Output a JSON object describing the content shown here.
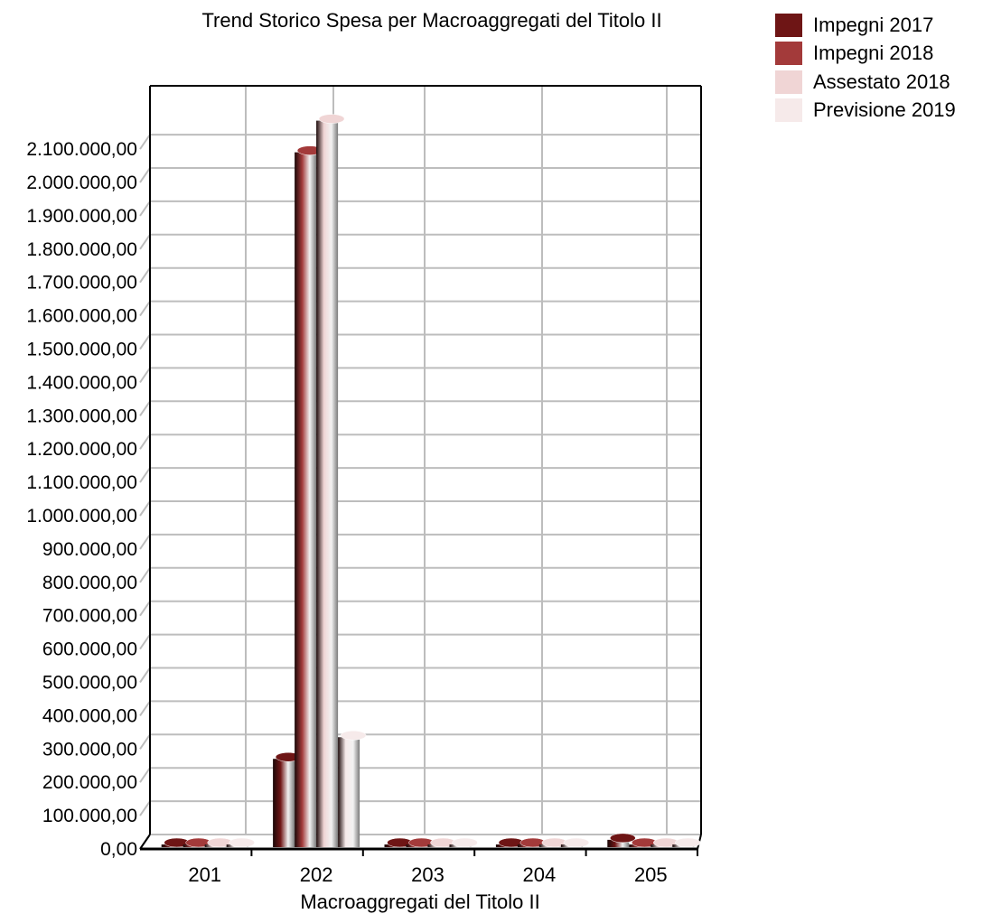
{
  "chart_data": {
    "type": "bar",
    "title": "Trend Storico Spesa per Macroaggregati del Titolo II",
    "xlabel": "Macroaggregati del Titolo II",
    "ylabel": "",
    "ylim": [
      0,
      2200000
    ],
    "ytick_step": 100000,
    "ytick_labels": [
      "0,00",
      "100.000,00",
      "200.000,00",
      "300.000,00",
      "400.000,00",
      "500.000,00",
      "600.000,00",
      "700.000,00",
      "800.000,00",
      "900.000,00",
      "1.000.000,00",
      "1.100.000,00",
      "1.200.000,00",
      "1.300.000,00",
      "1.400.000,00",
      "1.500.000,00",
      "1.600.000,00",
      "1.700.000,00",
      "1.800.000,00",
      "1.900.000,00",
      "2.000.000,00",
      "2.100.000,00"
    ],
    "grid": true,
    "legend_position": "top-right",
    "categories": [
      "201",
      "202",
      "203",
      "204",
      "205"
    ],
    "series": [
      {
        "name": "Impegni 2017",
        "color": "#6e1515",
        "values": [
          0,
          265000,
          0,
          0,
          22000
        ]
      },
      {
        "name": "Impegni 2018",
        "color": "#a33a3a",
        "values": [
          0,
          2085000,
          0,
          0,
          8000
        ]
      },
      {
        "name": "Assestato 2018",
        "color": "#f0d5d5",
        "values": [
          0,
          2180000,
          0,
          0,
          5000
        ]
      },
      {
        "name": "Previsione 2019",
        "color": "#f6eaea",
        "values": [
          0,
          330000,
          0,
          0,
          0
        ]
      }
    ]
  }
}
